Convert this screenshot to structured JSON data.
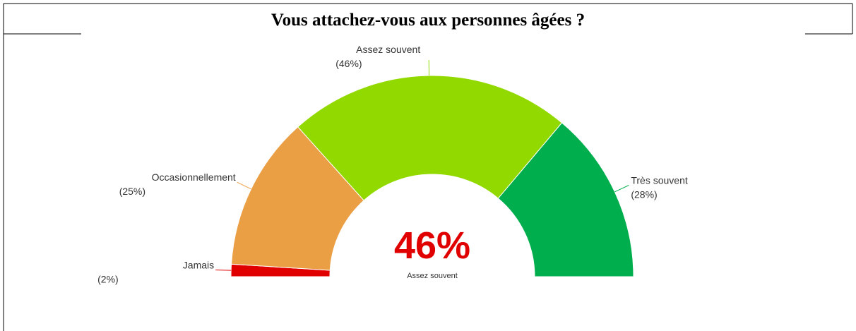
{
  "chart_data": {
    "type": "gauge_donut",
    "title": "Vous attachez-vous aux personnes âgées ?",
    "categories": [
      "Jamais",
      "Occasionnellement",
      "Assez souvent",
      "Très souvent"
    ],
    "values": [
      2,
      25,
      46,
      28
    ],
    "value_labels": [
      "(2%)",
      "(25%)",
      "(46%)",
      "(28%)"
    ],
    "colors": [
      "#e00000",
      "#eb9f45",
      "#92d900",
      "#00ae4d"
    ],
    "center_label": "46%"
  }
}
